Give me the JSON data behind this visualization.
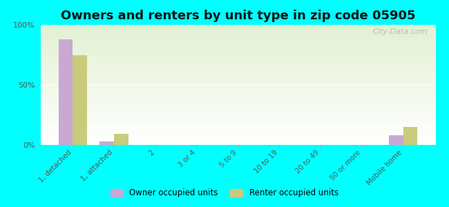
{
  "title": "Owners and renters by unit type in zip code 05905",
  "categories": [
    "1, detached",
    "1, attached",
    "2",
    "3 or 4",
    "5 to 9",
    "10 to 19",
    "20 to 49",
    "50 or more",
    "Mobile home"
  ],
  "owner_values": [
    88,
    3,
    0,
    0,
    0,
    0,
    0,
    0,
    8
  ],
  "renter_values": [
    75,
    9,
    0,
    0,
    0,
    0,
    0,
    0,
    15
  ],
  "owner_color": "#c9a8d4",
  "renter_color": "#c8cc7a",
  "background_color": "#00ffff",
  "watermark": "City-Data.com",
  "ylabel_ticks": [
    "0%",
    "50%",
    "100%"
  ],
  "ytick_vals": [
    0,
    50,
    100
  ],
  "ylim": [
    0,
    100
  ],
  "bar_width": 0.35,
  "title_fontsize": 13,
  "legend_labels": [
    "Owner occupied units",
    "Renter occupied units"
  ]
}
